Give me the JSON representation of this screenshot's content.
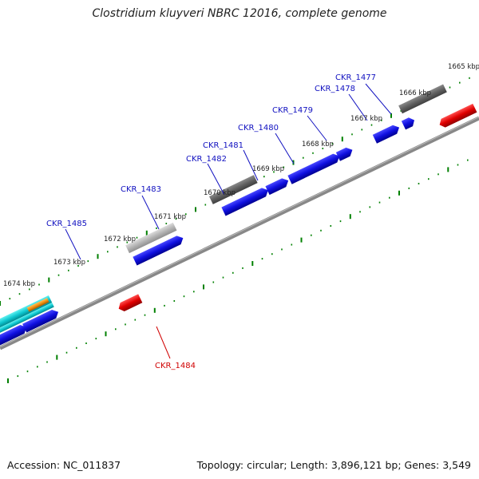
{
  "title": "Clostridium kluyveri NBRC 12016, complete genome",
  "footer": {
    "accession": "Accession: NC_011837",
    "summary": "Topology: circular; Length: 3,896,121 bp; Genes: 3,549"
  },
  "colors": {
    "forward_gene": "#1010e0",
    "reverse_gene": "#e00000",
    "feature_dark": "#606060",
    "feature_light": "#b4b4b4",
    "cds_cyan": "#10c8d0",
    "cds_orange": "#f09010",
    "tick": "#008000",
    "backbone": "#888888",
    "label_forward": "#1010c0",
    "label_reverse": "#d00000"
  },
  "kbp_marks": [
    "1665 kbp",
    "1666 kbp",
    "1667 kbp",
    "1668 kbp",
    "1669 kbp",
    "1670 kbp",
    "1671 kbp",
    "1672 kbp",
    "1673 kbp",
    "1674 kbp"
  ],
  "gene_labels": [
    {
      "text": "CKR_1477",
      "strand": "forward"
    },
    {
      "text": "CKR_1478",
      "strand": "forward"
    },
    {
      "text": "CKR_1479",
      "strand": "forward"
    },
    {
      "text": "CKR_1480",
      "strand": "forward"
    },
    {
      "text": "CKR_1481",
      "strand": "forward"
    },
    {
      "text": "CKR_1482",
      "strand": "forward"
    },
    {
      "text": "CKR_1483",
      "strand": "forward"
    },
    {
      "text": "CKR_1485",
      "strand": "forward"
    },
    {
      "text": "CKR_1484",
      "strand": "reverse"
    }
  ]
}
